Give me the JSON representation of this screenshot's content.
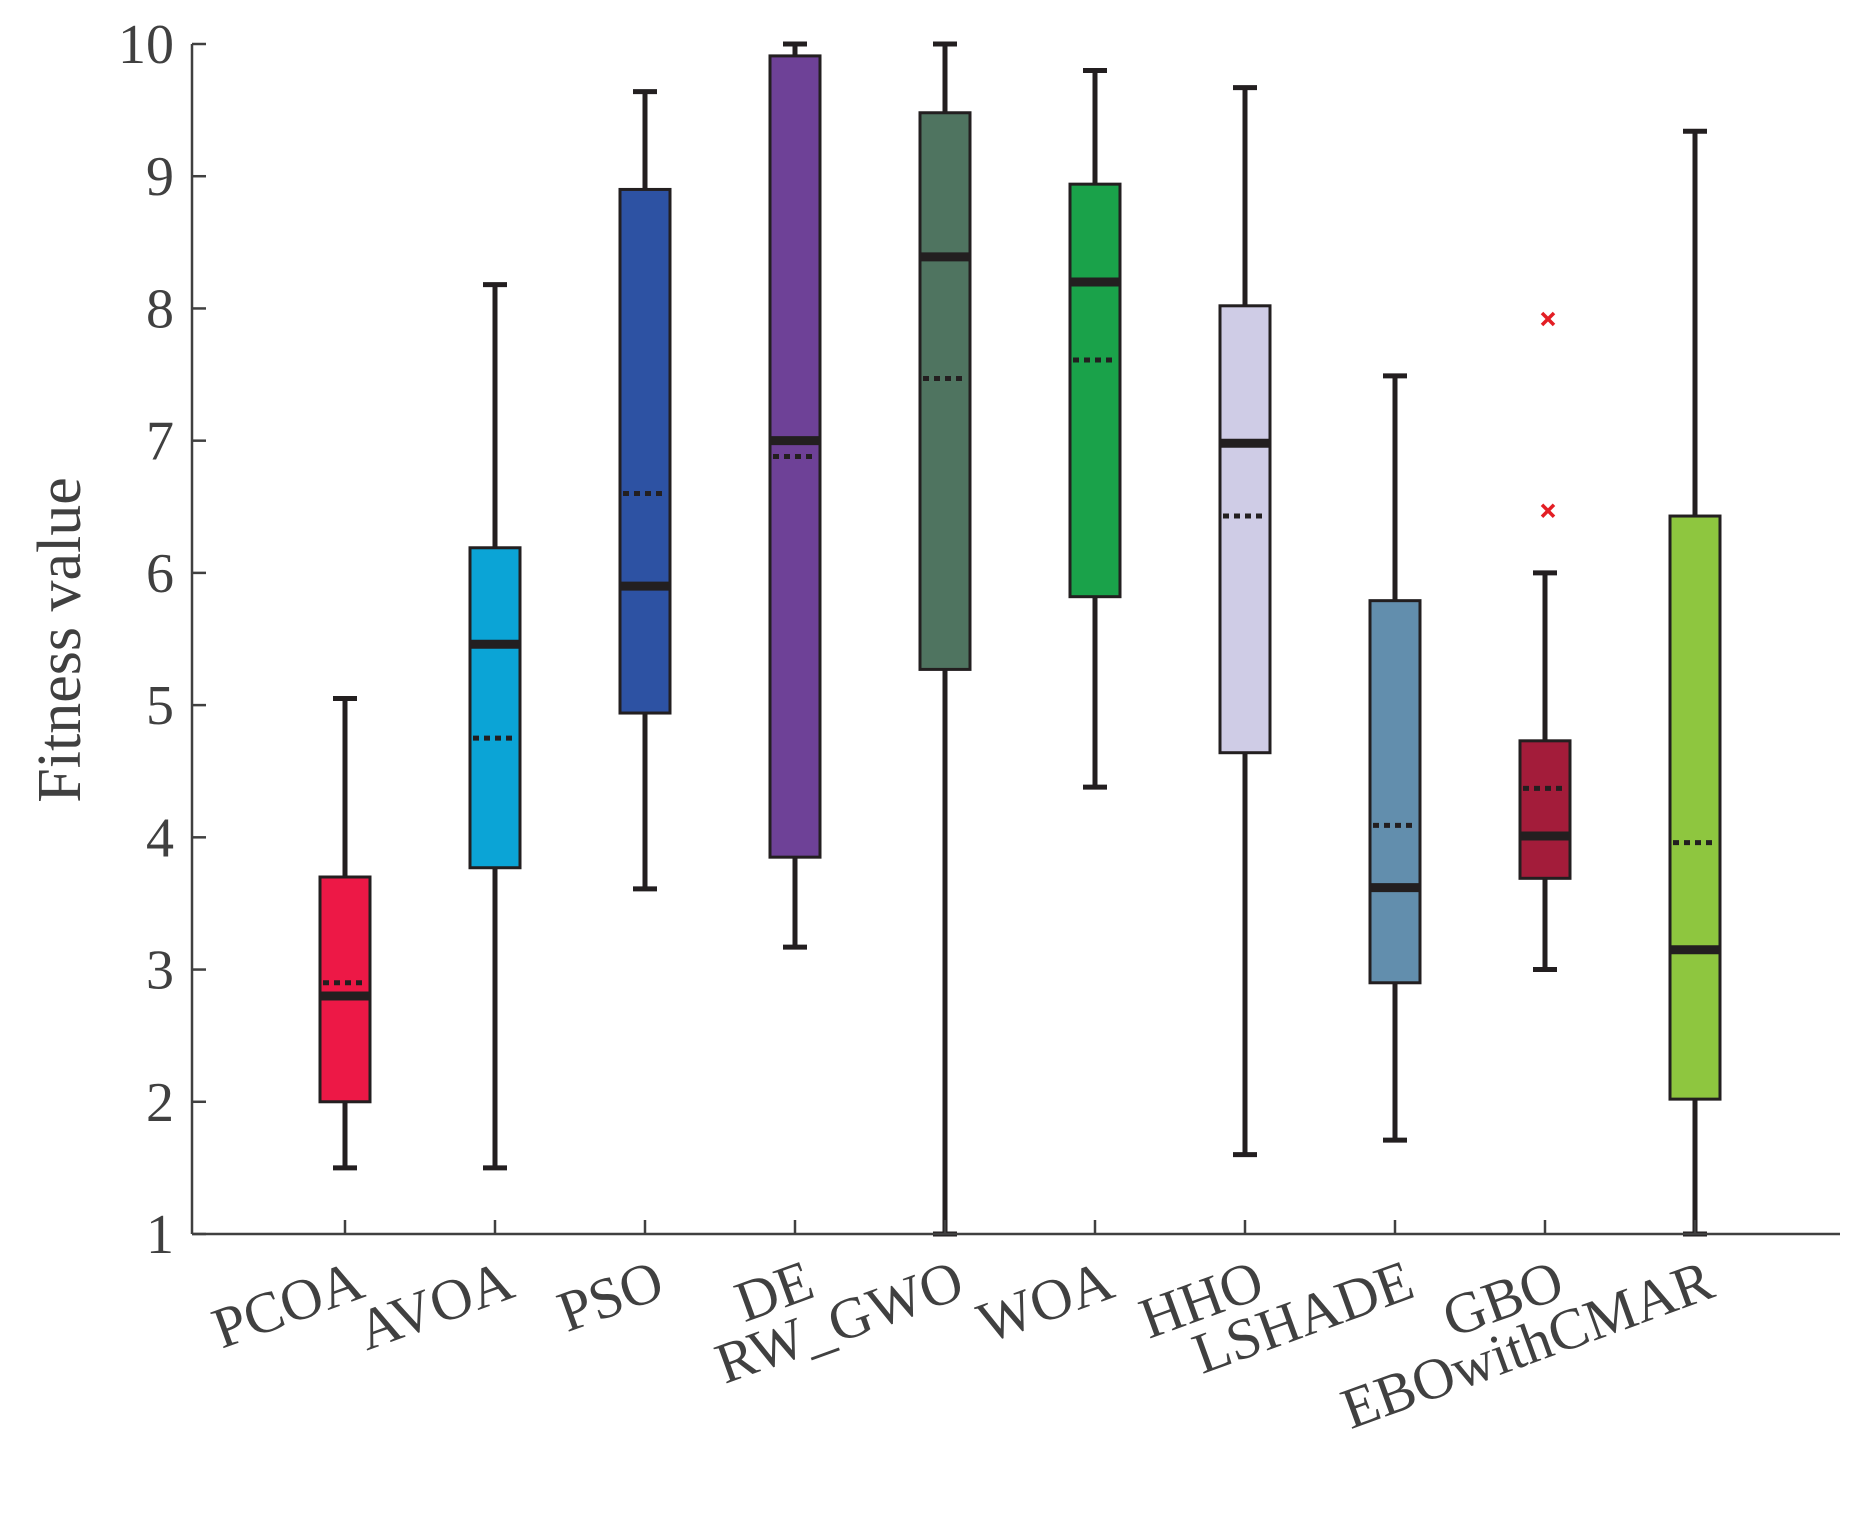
{
  "chart_data": {
    "type": "box",
    "title": "",
    "xlabel": "",
    "ylabel": "Fitness value",
    "ylim": [
      1,
      10
    ],
    "yticks": [
      1,
      2,
      3,
      4,
      5,
      6,
      7,
      8,
      9,
      10
    ],
    "grid": false,
    "legend": "none",
    "categories": [
      "PCOA",
      "AVOA",
      "PSO",
      "DE",
      "RW_GWO",
      "WOA",
      "HHO",
      "LSHADE",
      "GBO",
      "EBOwithCMAR"
    ],
    "series": [
      {
        "name": "PCOA",
        "color": "#ED1846",
        "min": 1.5,
        "q1": 2.0,
        "median": 2.8,
        "mean": 2.9,
        "q3": 3.7,
        "max": 5.05,
        "outliers": []
      },
      {
        "name": "AVOA",
        "color": "#0BA4D6",
        "min": 1.5,
        "q1": 3.77,
        "median": 5.46,
        "mean": 4.75,
        "q3": 6.19,
        "max": 8.18,
        "outliers": []
      },
      {
        "name": "PSO",
        "color": "#2D52A3",
        "min": 3.61,
        "q1": 4.94,
        "median": 5.9,
        "mean": 6.6,
        "q3": 8.9,
        "max": 9.64,
        "outliers": []
      },
      {
        "name": "DE",
        "color": "#6E4197",
        "min": 3.17,
        "q1": 3.85,
        "median": 7.0,
        "mean": 6.88,
        "q3": 9.91,
        "max": 10.0,
        "outliers": []
      },
      {
        "name": "RW_GWO",
        "color": "#4F7460",
        "min": 1.0,
        "q1": 5.27,
        "median": 8.39,
        "mean": 7.47,
        "q3": 9.48,
        "max": 10.0,
        "outliers": []
      },
      {
        "name": "WOA",
        "color": "#1AA24A",
        "min": 4.38,
        "q1": 5.82,
        "median": 8.2,
        "mean": 7.61,
        "q3": 8.94,
        "max": 9.8,
        "outliers": []
      },
      {
        "name": "HHO",
        "color": "#CFCCE6",
        "min": 1.6,
        "q1": 4.64,
        "median": 6.98,
        "mean": 6.43,
        "q3": 8.02,
        "max": 9.67,
        "outliers": []
      },
      {
        "name": "LSHADE",
        "color": "#628EAD",
        "min": 1.71,
        "q1": 2.9,
        "median": 3.62,
        "mean": 4.09,
        "q3": 5.79,
        "max": 7.49,
        "outliers": []
      },
      {
        "name": "GBO",
        "color": "#A31C3A",
        "min": 3.0,
        "q1": 3.69,
        "median": 4.01,
        "mean": 4.37,
        "q3": 4.73,
        "max": 6.0,
        "outliers": [
          7.92,
          6.47
        ]
      },
      {
        "name": "EBOwithCMAR",
        "color": "#8EC63F",
        "min": 1.0,
        "q1": 2.02,
        "median": 3.15,
        "mean": 3.96,
        "q3": 6.43,
        "max": 9.34,
        "outliers": []
      }
    ]
  }
}
